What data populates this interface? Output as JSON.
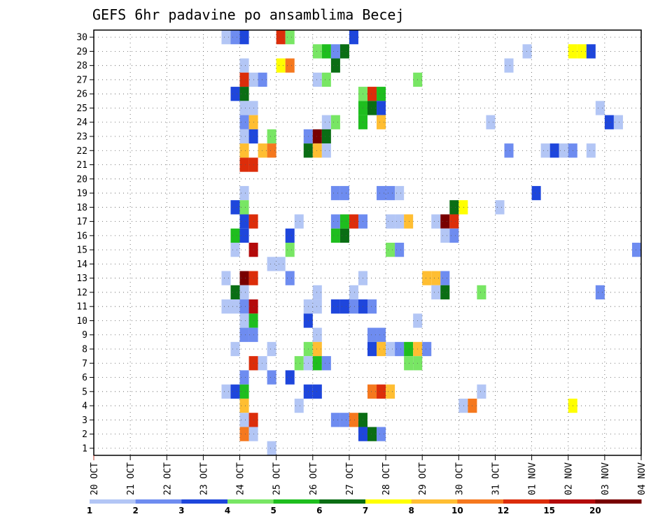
{
  "chart_data": {
    "type": "heatmap",
    "title": "GEFS 6hr padavine po ansamblima Becej",
    "x_tick_labels": [
      "20 OCT",
      "21 OCT",
      "22 OCT",
      "23 OCT",
      "24 OCT",
      "25 OCT",
      "26 OCT",
      "27 OCT",
      "28 OCT",
      "29 OCT",
      "30 OCT",
      "31 OCT",
      "01 NOV",
      "02 NOV",
      "03 NOV",
      "04 NOV"
    ],
    "y_tick_labels": [
      "1",
      "2",
      "3",
      "4",
      "5",
      "6",
      "7",
      "8",
      "9",
      "10",
      "11",
      "12",
      "13",
      "14",
      "15",
      "16",
      "17",
      "18",
      "19",
      "20",
      "21",
      "22",
      "23",
      "24",
      "25",
      "26",
      "27",
      "28",
      "29",
      "30"
    ],
    "x_unit": "6-hour steps from 20 OCT 00Z",
    "x_range": [
      0,
      60
    ],
    "y_range": [
      0.5,
      30.5
    ],
    "grid": "dotted",
    "colorbar": {
      "levels": [
        "1",
        "2",
        "3",
        "4",
        "5",
        "6",
        "7",
        "8",
        "10",
        "12",
        "15",
        "20"
      ],
      "colors": [
        "#b3c6f5",
        "#6e8cf0",
        "#1e46dc",
        "#78e664",
        "#1ebe1e",
        "#0a6e14",
        "#ffff00",
        "#ffbe32",
        "#f5781e",
        "#dc2d0a",
        "#b40a0a",
        "#780000"
      ]
    },
    "cells": [
      [
        30,
        14.5,
        1
      ],
      [
        30,
        15.5,
        2
      ],
      [
        30,
        16.5,
        3
      ],
      [
        30,
        20.5,
        10
      ],
      [
        30,
        21.5,
        4
      ],
      [
        30,
        28.5,
        3
      ],
      [
        29,
        24.5,
        4
      ],
      [
        29,
        25.5,
        5
      ],
      [
        29,
        26.5,
        2
      ],
      [
        29,
        27.5,
        6
      ],
      [
        29,
        47.5,
        1
      ],
      [
        29,
        52.5,
        7
      ],
      [
        29,
        53.5,
        7
      ],
      [
        29,
        54.5,
        3
      ],
      [
        28,
        16.5,
        1
      ],
      [
        28,
        20.5,
        7
      ],
      [
        28,
        21.5,
        9
      ],
      [
        28,
        26.5,
        6
      ],
      [
        28,
        45.5,
        1
      ],
      [
        27,
        16.5,
        10
      ],
      [
        27,
        17.5,
        1
      ],
      [
        27,
        18.5,
        2
      ],
      [
        27,
        24.5,
        1
      ],
      [
        27,
        25.5,
        4
      ],
      [
        27,
        35.5,
        4
      ],
      [
        26,
        15.5,
        3
      ],
      [
        26,
        16.5,
        6
      ],
      [
        26,
        29.5,
        4
      ],
      [
        26,
        30.5,
        10
      ],
      [
        26,
        31.5,
        5
      ],
      [
        25,
        16.5,
        1
      ],
      [
        25,
        17.5,
        1
      ],
      [
        25,
        29.5,
        5
      ],
      [
        25,
        30.5,
        6
      ],
      [
        25,
        31.5,
        3
      ],
      [
        25,
        55.5,
        1
      ],
      [
        24,
        16.5,
        2
      ],
      [
        24,
        17.5,
        8
      ],
      [
        24,
        25.5,
        1
      ],
      [
        24,
        26.5,
        4
      ],
      [
        24,
        29.5,
        5
      ],
      [
        24,
        31.5,
        8
      ],
      [
        24,
        43.5,
        1
      ],
      [
        24,
        56.5,
        3
      ],
      [
        24,
        57.5,
        1
      ],
      [
        23,
        16.5,
        1
      ],
      [
        23,
        17.5,
        3
      ],
      [
        23,
        19.5,
        4
      ],
      [
        23,
        23.5,
        2
      ],
      [
        23,
        24.5,
        12
      ],
      [
        23,
        25.5,
        6
      ],
      [
        22,
        16.5,
        8
      ],
      [
        22,
        18.5,
        8
      ],
      [
        22,
        19.5,
        9
      ],
      [
        22,
        23.5,
        6
      ],
      [
        22,
        24.5,
        8
      ],
      [
        22,
        25.5,
        1
      ],
      [
        22,
        45.5,
        2
      ],
      [
        22,
        49.5,
        1
      ],
      [
        22,
        50.5,
        3
      ],
      [
        22,
        51.5,
        1
      ],
      [
        22,
        52.5,
        2
      ],
      [
        22,
        54.5,
        1
      ],
      [
        21,
        16.5,
        10
      ],
      [
        21,
        17.5,
        10
      ],
      [
        19,
        16.5,
        1
      ],
      [
        19,
        26.5,
        2
      ],
      [
        19,
        27.5,
        2
      ],
      [
        19,
        31.5,
        2
      ],
      [
        19,
        32.5,
        2
      ],
      [
        19,
        33.5,
        1
      ],
      [
        19,
        48.5,
        3
      ],
      [
        18,
        15.5,
        3
      ],
      [
        18,
        16.5,
        4
      ],
      [
        18,
        39.5,
        6
      ],
      [
        18,
        40.5,
        7
      ],
      [
        18,
        44.5,
        1
      ],
      [
        17,
        16.5,
        3
      ],
      [
        17,
        17.5,
        10
      ],
      [
        17,
        22.5,
        1
      ],
      [
        17,
        26.5,
        2
      ],
      [
        17,
        27.5,
        5
      ],
      [
        17,
        28.5,
        10
      ],
      [
        17,
        29.5,
        2
      ],
      [
        17,
        32.5,
        1
      ],
      [
        17,
        33.5,
        1
      ],
      [
        17,
        34.5,
        8
      ],
      [
        17,
        37.5,
        1
      ],
      [
        17,
        38.5,
        12
      ],
      [
        17,
        39.5,
        10
      ],
      [
        16,
        15.5,
        5
      ],
      [
        16,
        16.5,
        3
      ],
      [
        16,
        21.5,
        3
      ],
      [
        16,
        26.5,
        5
      ],
      [
        16,
        27.5,
        6
      ],
      [
        16,
        38.5,
        1
      ],
      [
        16,
        39.5,
        2
      ],
      [
        15,
        15.5,
        1
      ],
      [
        15,
        17.5,
        11
      ],
      [
        15,
        21.5,
        4
      ],
      [
        15,
        32.5,
        4
      ],
      [
        15,
        33.5,
        2
      ],
      [
        15,
        59.5,
        2
      ],
      [
        14,
        19.5,
        1
      ],
      [
        14,
        20.5,
        1
      ],
      [
        13,
        14.5,
        1
      ],
      [
        13,
        16.5,
        12
      ],
      [
        13,
        17.5,
        10
      ],
      [
        13,
        21.5,
        2
      ],
      [
        13,
        29.5,
        1
      ],
      [
        13,
        36.5,
        8
      ],
      [
        13,
        37.5,
        8
      ],
      [
        13,
        38.5,
        2
      ],
      [
        12,
        15.5,
        6
      ],
      [
        12,
        16.5,
        1
      ],
      [
        12,
        24.5,
        1
      ],
      [
        12,
        28.5,
        1
      ],
      [
        12,
        37.5,
        1
      ],
      [
        12,
        38.5,
        6
      ],
      [
        12,
        42.5,
        4
      ],
      [
        12,
        55.5,
        2
      ],
      [
        11,
        14.5,
        1
      ],
      [
        11,
        15.5,
        1
      ],
      [
        11,
        16.5,
        2
      ],
      [
        11,
        17.5,
        11
      ],
      [
        11,
        23.5,
        1
      ],
      [
        11,
        24.5,
        1
      ],
      [
        11,
        26.5,
        3
      ],
      [
        11,
        27.5,
        3
      ],
      [
        11,
        28.5,
        2
      ],
      [
        11,
        29.5,
        3
      ],
      [
        11,
        30.5,
        2
      ],
      [
        10,
        16.5,
        1
      ],
      [
        10,
        17.5,
        5
      ],
      [
        10,
        23.5,
        3
      ],
      [
        10,
        35.5,
        1
      ],
      [
        9,
        16.5,
        2
      ],
      [
        9,
        17.5,
        2
      ],
      [
        9,
        24.5,
        1
      ],
      [
        9,
        30.5,
        2
      ],
      [
        9,
        31.5,
        2
      ],
      [
        8,
        15.5,
        1
      ],
      [
        8,
        19.5,
        1
      ],
      [
        8,
        23.5,
        4
      ],
      [
        8,
        24.5,
        8
      ],
      [
        8,
        30.5,
        3
      ],
      [
        8,
        31.5,
        8
      ],
      [
        8,
        32.5,
        1
      ],
      [
        8,
        33.5,
        2
      ],
      [
        8,
        34.5,
        5
      ],
      [
        8,
        35.5,
        8
      ],
      [
        8,
        36.5,
        2
      ],
      [
        7,
        17.5,
        10
      ],
      [
        7,
        18.5,
        1
      ],
      [
        7,
        22.5,
        4
      ],
      [
        7,
        23.5,
        1
      ],
      [
        7,
        24.5,
        5
      ],
      [
        7,
        25.5,
        2
      ],
      [
        7,
        34.5,
        4
      ],
      [
        7,
        35.5,
        4
      ],
      [
        6,
        16.5,
        2
      ],
      [
        6,
        19.5,
        2
      ],
      [
        6,
        21.5,
        3
      ],
      [
        5,
        14.5,
        1
      ],
      [
        5,
        15.5,
        3
      ],
      [
        5,
        16.5,
        5
      ],
      [
        5,
        23.5,
        3
      ],
      [
        5,
        24.5,
        3
      ],
      [
        5,
        30.5,
        9
      ],
      [
        5,
        31.5,
        10
      ],
      [
        5,
        32.5,
        8
      ],
      [
        5,
        42.5,
        1
      ],
      [
        4,
        16.5,
        8
      ],
      [
        4,
        22.5,
        1
      ],
      [
        4,
        40.5,
        1
      ],
      [
        4,
        41.5,
        9
      ],
      [
        4,
        52.5,
        7
      ],
      [
        3,
        16.5,
        1
      ],
      [
        3,
        17.5,
        10
      ],
      [
        3,
        26.5,
        2
      ],
      [
        3,
        27.5,
        2
      ],
      [
        3,
        28.5,
        9
      ],
      [
        3,
        29.5,
        6
      ],
      [
        2,
        16.5,
        9
      ],
      [
        2,
        17.5,
        1
      ],
      [
        2,
        29.5,
        3
      ],
      [
        2,
        30.5,
        6
      ],
      [
        2,
        31.5,
        2
      ],
      [
        1,
        19.5,
        1
      ]
    ]
  }
}
